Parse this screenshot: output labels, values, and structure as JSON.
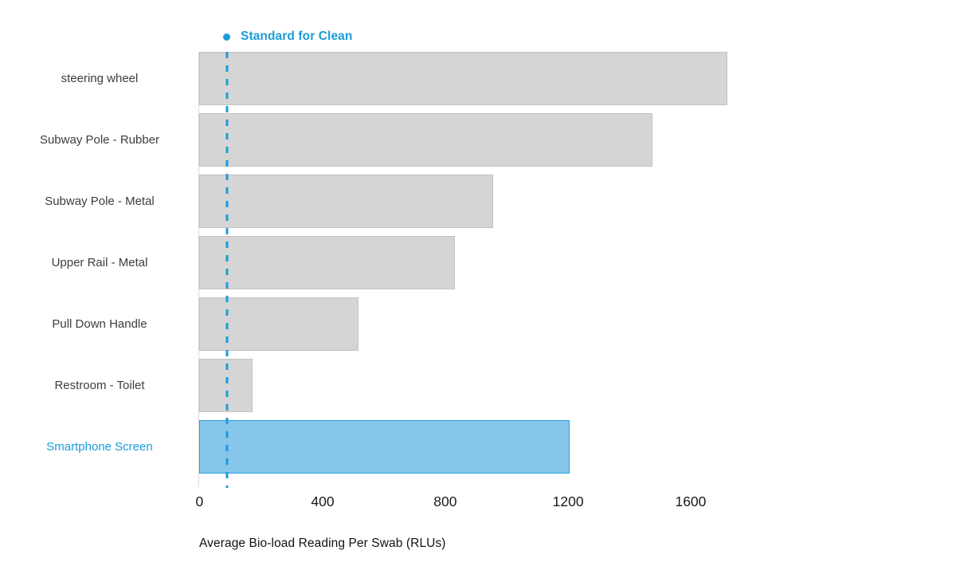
{
  "chart_data": {
    "type": "bar",
    "orientation": "horizontal",
    "title": "",
    "categories": [
      "steering wheel",
      "Subway Pole - Rubber",
      "Subway Pole - Metal",
      "Upper Rail - Metal",
      "Pull Down Handle",
      "Restroom - Toilet",
      "Smartphone Screen"
    ],
    "values": [
      1725,
      1480,
      960,
      835,
      520,
      175,
      1210
    ],
    "highlight_index": 6,
    "reference_line": {
      "label": "Standard for Clean",
      "value": 90
    },
    "xlabel": "Average Bio-load Reading Per Swab (RLUs)",
    "x_ticks": [
      "0",
      "400",
      "800",
      "1200",
      "1600"
    ],
    "x_tick_values": [
      0,
      400,
      800,
      1200,
      1600
    ],
    "xlim": [
      0,
      1820
    ],
    "grid": false,
    "legend_position": "top-left",
    "units": "RLUs"
  },
  "colors": {
    "accent_blue": "#1d9bd8",
    "highlight_bar_fill": "#85c6ea",
    "highlight_bar_border": "#2da0d9",
    "bar_fill": "#d5d5d5",
    "bar_border": "#c2c2c2",
    "axis_line": "#dcdcdc",
    "category_text": "#3d3d3d",
    "tick_text": "#1a1a1a",
    "axis_title_text": "#111111"
  }
}
